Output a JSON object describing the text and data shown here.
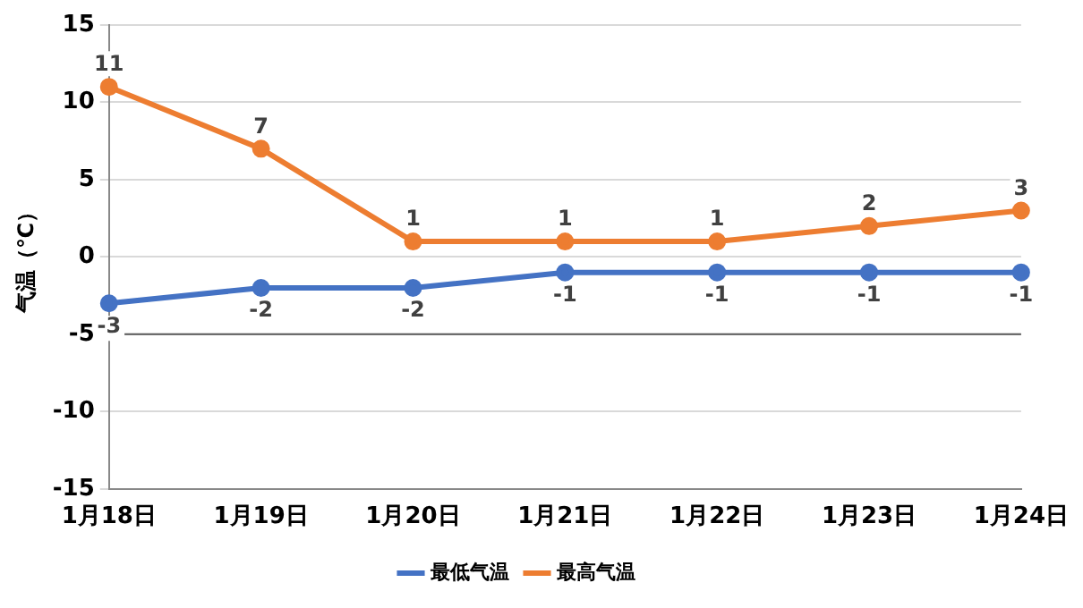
{
  "chart_data": {
    "type": "line",
    "ylabel": "气温（℃）",
    "categories": [
      "1月18日",
      "1月19日",
      "1月20日",
      "1月21日",
      "1月22日",
      "1月23日",
      "1月24日"
    ],
    "series": [
      {
        "name": "最低气温",
        "color": "#4472c4",
        "values": [
          -3,
          -2,
          -2,
          -1,
          -1,
          -1,
          -1
        ]
      },
      {
        "name": "最高气温",
        "color": "#ed7d31",
        "values": [
          11,
          7,
          1,
          1,
          1,
          2,
          3
        ]
      }
    ],
    "ylim": [
      -15,
      15
    ],
    "yticks": [
      -15,
      -10,
      -5,
      0,
      5,
      10,
      15
    ],
    "grid": "y",
    "legend": "bottom",
    "marker": "circle",
    "line_style": "solid",
    "data_labels": true,
    "ref_lines": [
      {
        "axis": "y",
        "value": -5,
        "color": "#595959"
      }
    ]
  }
}
